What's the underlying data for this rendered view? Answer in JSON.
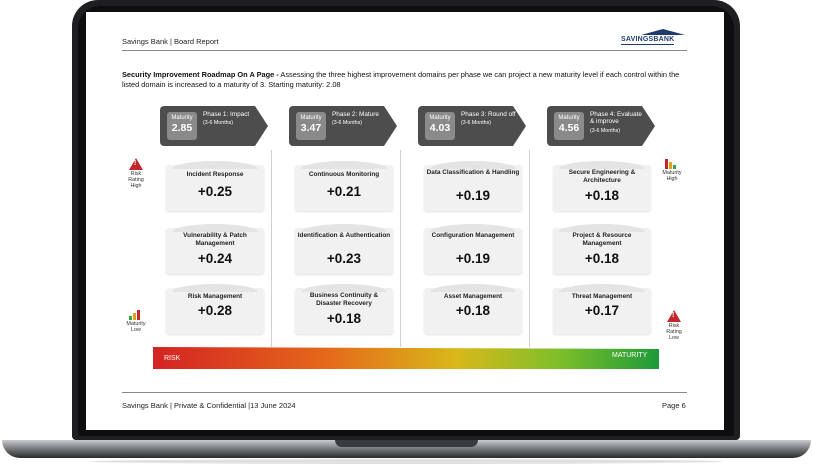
{
  "header": {
    "title": "Savings Bank | Board Report",
    "logo_text": "SAVINGSBANK"
  },
  "intro": {
    "heading": "Security Improvement Roadmap On A Page -",
    "text": " Assessing the three highest improvement domains per phase we can project a new maturity level if each control within the listed domain is increased to a maturity of 3. Starting maturity: 2.08"
  },
  "phases": [
    {
      "maturity_label": "Maturity",
      "maturity_value": "2.85",
      "name": "Phase 1: Impact",
      "duration": "(3-6 Months)"
    },
    {
      "maturity_label": "Maturity",
      "maturity_value": "3.47",
      "name": "Phase 2: Mature",
      "duration": "(3-6 Months)"
    },
    {
      "maturity_label": "Maturity",
      "maturity_value": "4.03",
      "name": "Phase 3: Round off",
      "duration": "(3-6 Months)"
    },
    {
      "maturity_label": "Maturity",
      "maturity_value": "4.56",
      "name": "Phase 4: Evaluate & improve",
      "duration": "(3-6 Months)"
    }
  ],
  "columns": [
    [
      {
        "name": "Incident Response",
        "value": "+0.25"
      },
      {
        "name": "Vulnerability & Patch Management",
        "value": "+0.24"
      },
      {
        "name": "Risk Management",
        "value": "+0.28"
      }
    ],
    [
      {
        "name": "Continuous Monitoring",
        "value": "+0.21"
      },
      {
        "name": "Identification & Authentication",
        "value": "+0.23"
      },
      {
        "name": "Business Continuity & Disaster Recovery",
        "value": "+0.18"
      }
    ],
    [
      {
        "name": "Data Classification & Handling",
        "value": "+0.19"
      },
      {
        "name": "Configuration Management",
        "value": "+0.19"
      },
      {
        "name": "Asset Management",
        "value": "+0.18"
      }
    ],
    [
      {
        "name": "Secure Engineering & Architecture",
        "value": "+0.18"
      },
      {
        "name": "Project & Resource Management",
        "value": "+0.18"
      },
      {
        "name": "Threat Management",
        "value": "+0.17"
      }
    ]
  ],
  "side": {
    "left_top": "Risk Rating High",
    "left_bottom": "Maturity Low",
    "right_top": "Maturity High",
    "right_bottom": "Risk Rating Low"
  },
  "bar": {
    "risk_label": "RISK",
    "maturity_label": "MATURITY"
  },
  "footer": {
    "left": "Savings Bank | Private & Confidential |13 June 2024",
    "right": "Page 6"
  },
  "colors": {
    "phase_arrow": "#4d4d4d",
    "maturity_box": "#8a8a8a",
    "risk_red": "#c0282a",
    "maturity_green": "#2eab3c",
    "logo_blue": "#1f3b6e"
  },
  "icons": [
    "warning-icon",
    "maturity-bars-icon"
  ]
}
